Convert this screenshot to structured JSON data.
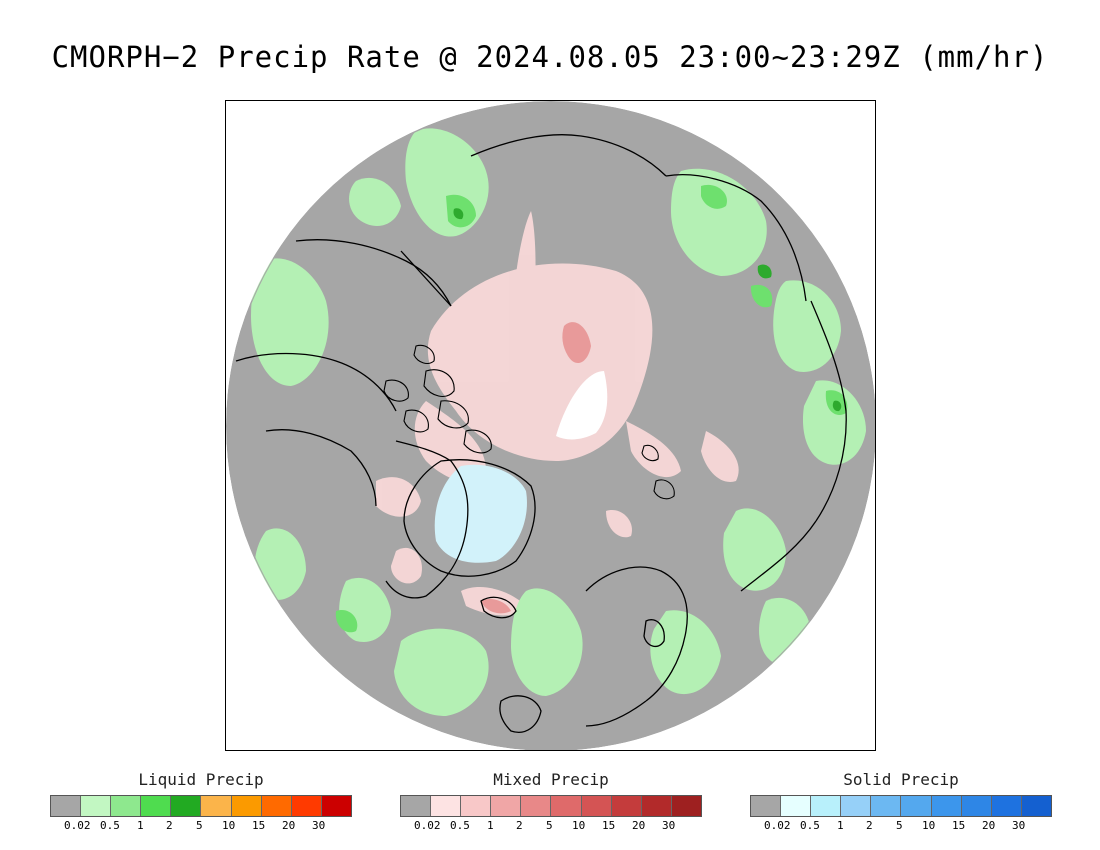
{
  "title": "CMORPH−2 Precip Rate @ 2024.08.05 23:00~23:29Z (mm/hr)",
  "colors": {
    "nodata_gray": "#a6a6a6",
    "land_outline": "#000000",
    "no_coverage": "#ffffff",
    "mixed_light": "#f8d8d8",
    "mixed_mid": "#e89a9a",
    "liquid_light": "#b4f0b4",
    "liquid_mid": "#6ee06e",
    "liquid_dark": "#2eaa2e",
    "solid_light": "#d2f2fa"
  },
  "legends": [
    {
      "title": "Liquid Precip",
      "colors": [
        "#a6a6a6",
        "#c2f7c2",
        "#8ee88e",
        "#4fdc4f",
        "#22aa22",
        "#fbb44a",
        "#fb9a00",
        "#ff6a00",
        "#ff3a00",
        "#cc0000"
      ],
      "ticks": [
        "0.02",
        "0.5",
        "1",
        "2",
        "5",
        "10",
        "15",
        "20",
        "30"
      ]
    },
    {
      "title": "Mixed Precip",
      "colors": [
        "#a6a6a6",
        "#fde3e3",
        "#f8c8c8",
        "#f0a6a6",
        "#e88888",
        "#df6a6a",
        "#d45454",
        "#c43c3c",
        "#b22a2a",
        "#9e2020"
      ],
      "ticks": [
        "0.02",
        "0.5",
        "1",
        "2",
        "5",
        "10",
        "15",
        "20",
        "30"
      ]
    },
    {
      "title": "Solid Precip",
      "colors": [
        "#a6a6a6",
        "#e6ffff",
        "#b8f0fb",
        "#96d0f8",
        "#6cb8f2",
        "#54a8ee",
        "#3c96ec",
        "#2e86e6",
        "#1e72e0",
        "#1460d0"
      ],
      "ticks": [
        "0.02",
        "0.5",
        "1",
        "2",
        "5",
        "10",
        "15",
        "20",
        "30"
      ]
    }
  ]
}
